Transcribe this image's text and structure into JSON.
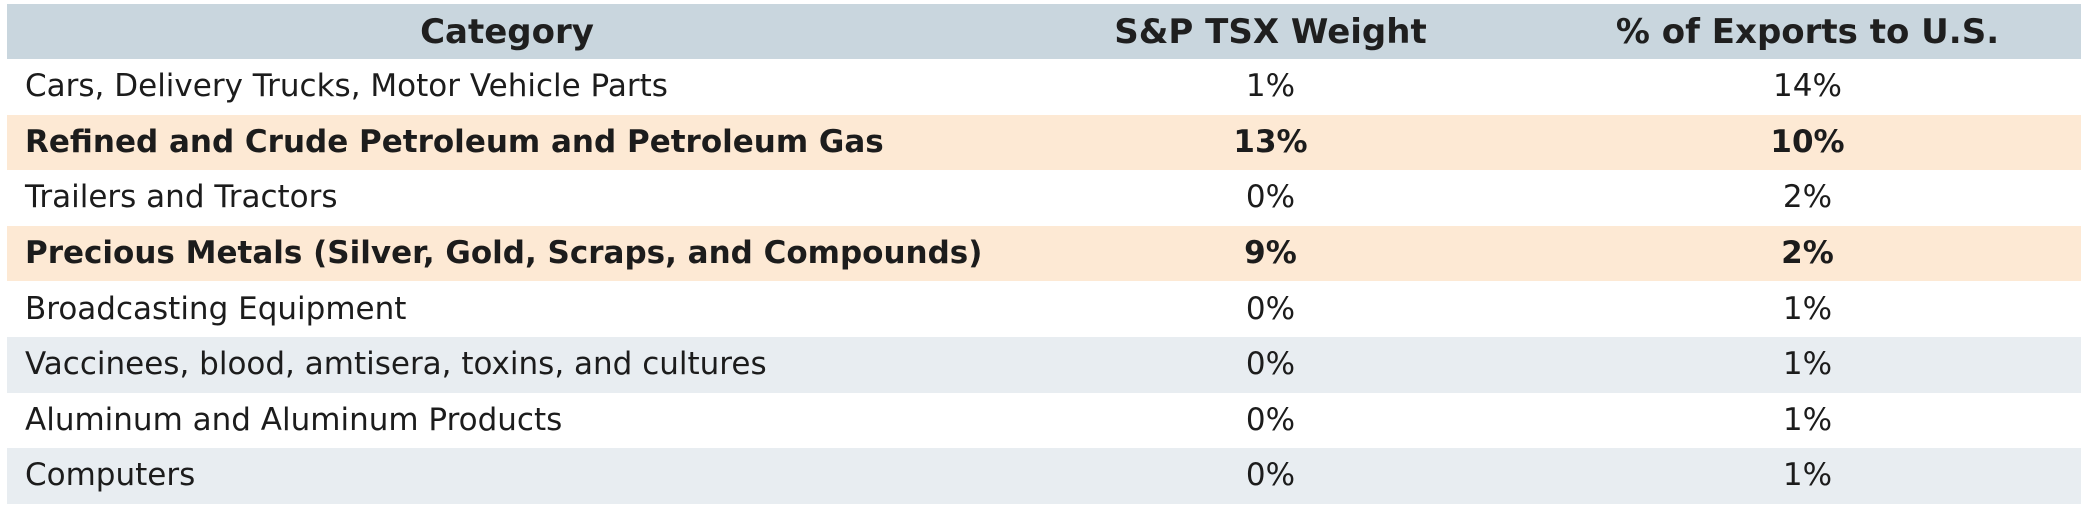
{
  "table": {
    "headers": [
      "Category",
      "S&P TSX Weight",
      "% of Exports to U.S."
    ],
    "rows": [
      {
        "category": "Cars, Delivery Trucks, Motor Vehicle Parts",
        "tsx_weight": "1%",
        "exports_us": "14%",
        "style": "white"
      },
      {
        "category": "Refined and Crude Petroleum and Petroleum Gas",
        "tsx_weight": "13%",
        "exports_us": "10%",
        "style": "highlight"
      },
      {
        "category": "Trailers and Tractors",
        "tsx_weight": "0%",
        "exports_us": "2%",
        "style": "white"
      },
      {
        "category": "Precious Metals (Silver, Gold, Scraps, and Compounds)",
        "tsx_weight": "9%",
        "exports_us": "2%",
        "style": "highlight"
      },
      {
        "category": "Broadcasting Equipment",
        "tsx_weight": "0%",
        "exports_us": "1%",
        "style": "white"
      },
      {
        "category": "Vaccinees, blood, amtisera, toxins, and cultures",
        "tsx_weight": "0%",
        "exports_us": "1%",
        "style": "grey"
      },
      {
        "category": "Aluminum and Aluminum Products",
        "tsx_weight": "0%",
        "exports_us": "1%",
        "style": "white"
      },
      {
        "category": "Computers",
        "tsx_weight": "0%",
        "exports_us": "1%",
        "style": "grey"
      }
    ]
  },
  "colors": {
    "header_bg": "#c9d6de",
    "highlight_bg": "#fde9d4",
    "grey_bg": "#e8edf1",
    "white_bg": "#ffffff"
  }
}
